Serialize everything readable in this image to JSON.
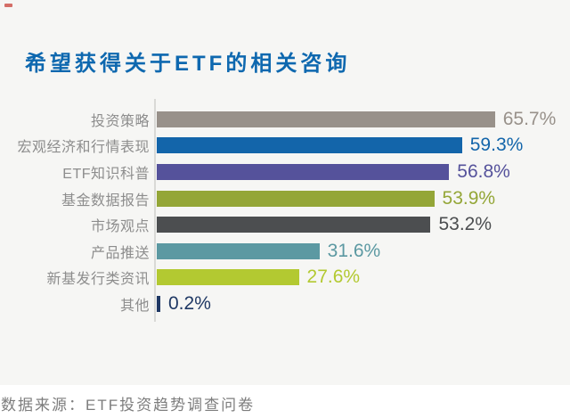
{
  "chart_data": {
    "type": "bar",
    "orientation": "horizontal",
    "title": "希望获得关于ETF的相关咨询",
    "source": "数据来源：ETF投资趋势调查问卷",
    "categories": [
      "投资策略",
      "宏观经济和行情表现",
      "ETF知识科普",
      "基金数据报告",
      "市场观点",
      "产品推送",
      "新基发行类资讯",
      "其他"
    ],
    "values": [
      65.7,
      59.3,
      56.8,
      53.9,
      53.2,
      31.6,
      27.6,
      0.2
    ],
    "value_labels": [
      "65.7%",
      "59.3%",
      "56.8%",
      "53.9%",
      "53.2%",
      "31.6%",
      "27.6%",
      "0.2%"
    ],
    "bar_colors": [
      "#98918a",
      "#1365aa",
      "#55529b",
      "#94a637",
      "#4c4e50",
      "#5c99a2",
      "#b3c931",
      "#1f3864"
    ],
    "xlim": [
      0,
      80
    ],
    "grid": false,
    "legend": false,
    "title_color": "#0e68af",
    "category_label_color": "#8d8d8d",
    "source_color": "#7d7d7d",
    "background_color": "#f6f6f4"
  }
}
